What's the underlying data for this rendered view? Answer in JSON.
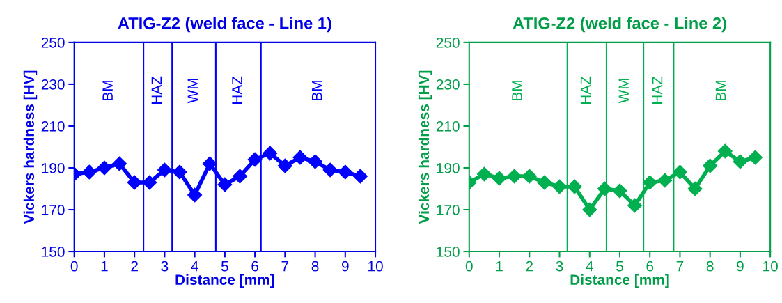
{
  "chart_data": [
    {
      "type": "line",
      "title": "ATIG-Z2 (weld face - Line 1)",
      "xlabel": "Distance [mm]",
      "ylabel": "Vickers hardness [HV]",
      "x": [
        0,
        0.5,
        1,
        1.5,
        2,
        2.5,
        3,
        3.5,
        4,
        4.5,
        5,
        5.5,
        6,
        6.5,
        7,
        7.5,
        8,
        8.5,
        9,
        9.5
      ],
      "series": [
        {
          "color": "#0000ff",
          "values": [
            187,
            188,
            190,
            192,
            183,
            183,
            189,
            188,
            177,
            192,
            182,
            186,
            194,
            197,
            191,
            195,
            193,
            189,
            188,
            186
          ]
        }
      ],
      "xlim": [
        0,
        10
      ],
      "xticks": [
        0,
        1,
        2,
        3,
        4,
        5,
        6,
        7,
        8,
        9,
        10
      ],
      "ylim": [
        150,
        250
      ],
      "yticks": [
        150,
        170,
        190,
        210,
        230,
        250
      ],
      "marker": "diamond",
      "line_style": "solid",
      "grid": false,
      "legend": false,
      "ref_lines": [
        {
          "axis": "x",
          "value": 2.3,
          "color": "#0000ff"
        },
        {
          "axis": "x",
          "value": 3.25,
          "color": "#0000ff"
        },
        {
          "axis": "x",
          "value": 4.7,
          "color": "#0000ff"
        },
        {
          "axis": "x",
          "value": 6.2,
          "color": "#0000ff"
        }
      ],
      "annotations": [
        "BM",
        "HAZ",
        "WM",
        "HAZ",
        "BM"
      ]
    },
    {
      "type": "line",
      "title": "ATIG-Z2 (weld face - Line 2)",
      "xlabel": "Distance [mm]",
      "ylabel": "Vickers hardness [HV]",
      "x": [
        0,
        0.5,
        1,
        1.5,
        2,
        2.5,
        3,
        3.5,
        4,
        4.5,
        5,
        5.5,
        6,
        6.5,
        7,
        7.5,
        8,
        8.5,
        9,
        9.5
      ],
      "series": [
        {
          "color": "#00b050",
          "values": [
            183,
            187,
            185,
            186,
            186,
            183,
            181,
            181,
            170,
            180,
            179,
            172,
            183,
            184,
            188,
            180,
            191,
            198,
            193,
            195
          ]
        }
      ],
      "xlim": [
        0,
        10
      ],
      "xticks": [
        0,
        1,
        2,
        3,
        4,
        5,
        6,
        7,
        8,
        9,
        10
      ],
      "ylim": [
        150,
        250
      ],
      "yticks": [
        150,
        170,
        190,
        210,
        230,
        250
      ],
      "marker": "diamond",
      "line_style": "solid",
      "grid": false,
      "legend": false,
      "ref_lines": [
        {
          "axis": "x",
          "value": 3.26,
          "color": "#00b050"
        },
        {
          "axis": "x",
          "value": 4.56,
          "color": "#00b050"
        },
        {
          "axis": "x",
          "value": 5.79,
          "color": "#00b050"
        },
        {
          "axis": "x",
          "value": 6.79,
          "color": "#00b050"
        }
      ],
      "annotations": [
        "BM",
        "HAZ",
        "WM",
        "HAZ",
        "BM"
      ]
    }
  ]
}
